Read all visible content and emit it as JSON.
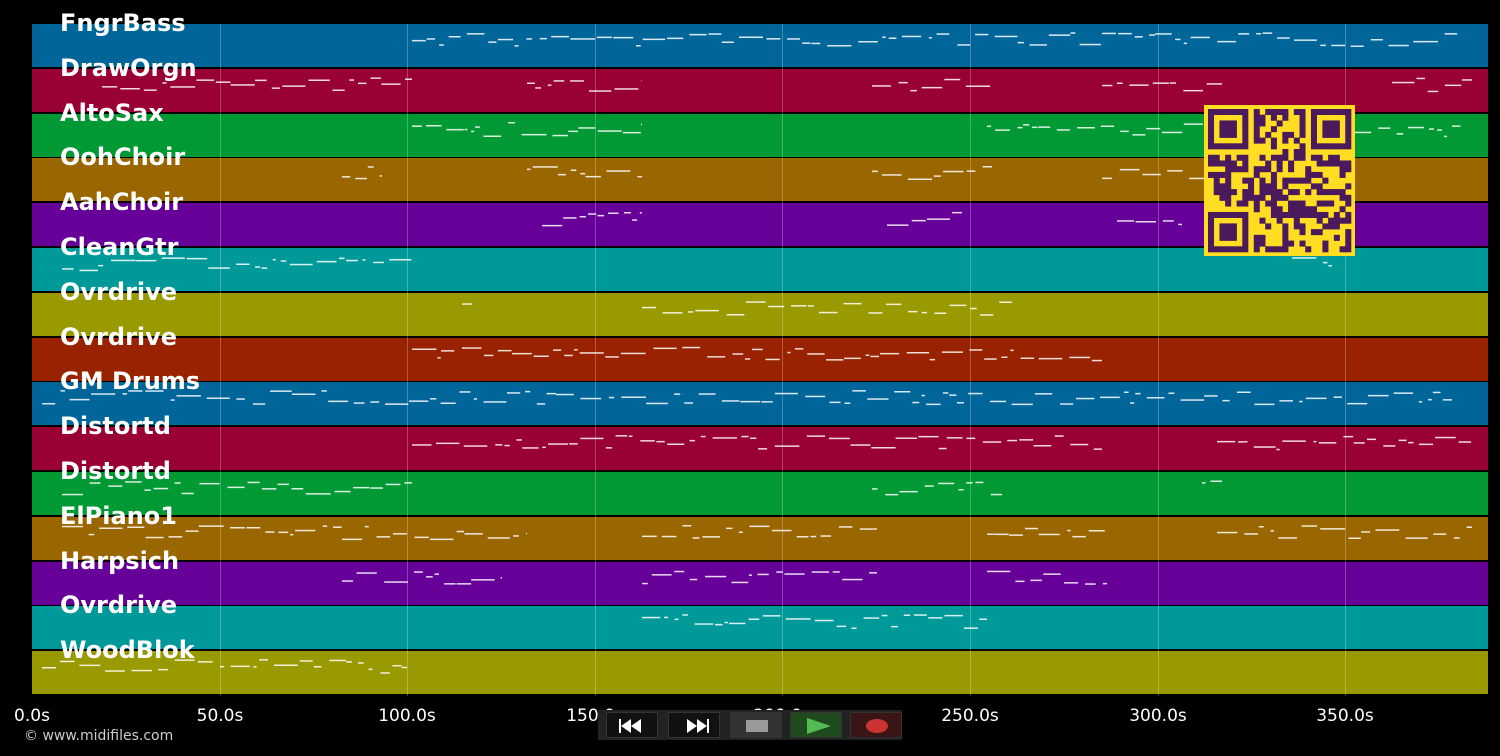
{
  "app": {
    "copyright": "© www.midifiles.com"
  },
  "tracks": [
    {
      "label": "FngrBass",
      "color": "#006699"
    },
    {
      "label": "DrawOrgn",
      "color": "#990033"
    },
    {
      "label": "AltoSax",
      "color": "#009933"
    },
    {
      "label": "OohChoir",
      "color": "#996600"
    },
    {
      "label": "AahChoir",
      "color": "#660099"
    },
    {
      "label": "CleanGtr",
      "color": "#009999"
    },
    {
      "label": "Ovrdrive",
      "color": "#999900"
    },
    {
      "label": "Ovrdrive",
      "color": "#992200"
    },
    {
      "label": "GM Drums",
      "color": "#006699"
    },
    {
      "label": "Distortd",
      "color": "#990033"
    },
    {
      "label": "Distortd",
      "color": "#009933"
    },
    {
      "label": "ElPiano1",
      "color": "#996600"
    },
    {
      "label": "Harpsich",
      "color": "#660099"
    },
    {
      "label": "Ovrdrive",
      "color": "#009999"
    },
    {
      "label": "WoodBlok",
      "color": "#999900"
    }
  ],
  "timeline": {
    "ticks": [
      "0.0s",
      "50.0s",
      "100.0s",
      "150.0s",
      "200.0s",
      "250.0s",
      "300.0s",
      "350.0s"
    ]
  },
  "transport": {
    "buttons": [
      {
        "name": "rewind-button",
        "icon": "rewind-icon"
      },
      {
        "name": "fast-forward-button",
        "icon": "fast-forward-icon"
      },
      {
        "name": "stop-button",
        "icon": "stop-icon"
      },
      {
        "name": "play-button",
        "icon": "play-icon"
      },
      {
        "name": "record-button",
        "icon": "record-icon"
      }
    ]
  },
  "colors": {
    "background": "#000000",
    "qr_fg": "#4a1a5c",
    "qr_bg": "#ffdd22"
  }
}
